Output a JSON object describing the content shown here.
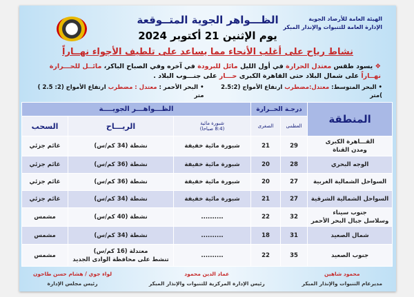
{
  "header": {
    "org_line1": "الهيئة العامة للأرصاد الجوية",
    "org_line2": "الإدارة العامة للتنبوات والإنذار المبكر",
    "title": "الظـــواهر الجوية المتــوقعة",
    "date": "يوم  الإثنين 21 أكتوبر 2024",
    "headline": "نشاط رياح على أغلب الأنحاء مما يساعد على تلطيف الأجواء نهــاراً"
  },
  "description": {
    "bullet": "❖",
    "p1": "يسود طقس ",
    "p2": "معتدل الحرارة",
    "p3": " في أول الليل ",
    "p4": "مائل للبرودة",
    "p5": " في آخره وفي الصباح الباكر، ",
    "p6": "مائــل للحـــرارة نهــاراً",
    "p7": " على شمال البلاد حتى القاهرة الكبرى ",
    "p8": "حـــار",
    "p9": " على جنـــوب البلاد ."
  },
  "seas": {
    "med_label": "البحر المتوسط:",
    "med_state": "معتدل:مضطرب",
    "med_waves": "ارتفاع الأمواج (2.5:2 )متر",
    "red_label": "البحر الأحمر :",
    "red_state": "معتدل : مضطرب",
    "red_waves": "ارتفاع الأمواج (2: 2.5 ) متر"
  },
  "table": {
    "region": "المنطقة",
    "temp": "درجـة الحــرارة",
    "phenomena": "الظـــواهـــر الجويــــة",
    "max": "العظمى",
    "min": "الصغرى",
    "fog": "شبورة مائية",
    "fog_time": "(8:4 صباحا)",
    "wind": "الريـــاح",
    "clouds": "السحب",
    "rows": [
      {
        "region": "القـــاهرة الكبرى",
        "region2": "ومدن القناة",
        "max": "29",
        "min": "21",
        "fog": "شبورة مائية خفيفة",
        "wind": "نشطة (34 كم/س)",
        "wind2": "",
        "clouds": "غائم جزئي"
      },
      {
        "region": "الوجه البحري",
        "region2": "",
        "max": "28",
        "min": "20",
        "fog": "شبورة مائية خفيفة",
        "wind": "نشطة (36 كم/س)",
        "wind2": "",
        "clouds": "غائم جزئي"
      },
      {
        "region": "السواحل الشمالية الغربية",
        "region2": "",
        "max": "27",
        "min": "20",
        "fog": "شبورة مائية خفيفة",
        "wind": "نشطة (36 كم/س)",
        "wind2": "",
        "clouds": "غائم جزئي"
      },
      {
        "region": "السواحل الشمالية الشرقية",
        "region2": "",
        "max": "27",
        "min": "21",
        "fog": "شبورة مائية خفيفة",
        "wind": "نشطة (34 كم/س)",
        "wind2": "",
        "clouds": "غائم جزئي"
      },
      {
        "region": "جنوب سيناء",
        "region2": "وسلاسل جبال البحر الأحمر",
        "max": "32",
        "min": "22",
        "fog": "..........",
        "wind": "نشطة (40 كم/س)",
        "wind2": "",
        "clouds": "مشمس"
      },
      {
        "region": "شمال الصعيد",
        "region2": "",
        "max": "31",
        "min": "18",
        "fog": "..........",
        "wind": "نشطة (34 كم/س)",
        "wind2": "",
        "clouds": "مشمس"
      },
      {
        "region": "جنوب الصعيد",
        "region2": "",
        "max": "35",
        "min": "22",
        "fog": "..........",
        "wind": "معتدلة (16 كم/س)",
        "wind2": "تنشط على محافظة الوادى الجديد",
        "clouds": "مشمس"
      }
    ]
  },
  "footer": [
    {
      "name": "محمود شاهين",
      "role": "مديرعام التنبوات والإنذار المبكر"
    },
    {
      "name": "عماد الدين محمود",
      "role": "رئيس الإدارة المركزية للتنبوات والإنذار المبكر"
    },
    {
      "name": "لواء جوي / هشام حسن طاحون",
      "role": "رئيس مجلس الإدارة"
    }
  ]
}
